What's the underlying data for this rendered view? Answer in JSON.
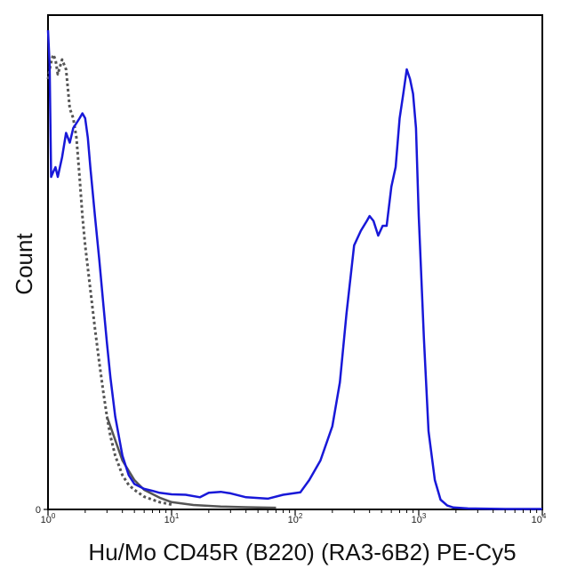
{
  "chart_data": {
    "type": "line",
    "title": "",
    "xlabel": "Hu/Mo CD45R (B220) (RA3-6B2) PE-Cy5",
    "ylabel": "Count",
    "x_scale": "log",
    "xlim": [
      1,
      10000
    ],
    "ylim": [
      0,
      100
    ],
    "grid": false,
    "legend": "none",
    "x_ticks": [
      {
        "value": 1,
        "base": "10",
        "exp": "0"
      },
      {
        "value": 10,
        "base": "10",
        "exp": "1"
      },
      {
        "value": 100,
        "base": "10",
        "exp": "2"
      },
      {
        "value": 1000,
        "base": "10",
        "exp": "3"
      },
      {
        "value": 10000,
        "base": "10",
        "exp": "4"
      }
    ],
    "y_ticks": [
      {
        "value": 0,
        "label": "0"
      }
    ],
    "series": [
      {
        "color": "#555555",
        "dash": "dotted",
        "x": [
          1.0,
          1.05,
          1.1,
          1.15,
          1.2,
          1.3,
          1.4,
          1.5,
          1.6,
          1.7,
          1.8,
          1.9,
          2.0,
          2.2,
          2.4,
          2.6,
          2.8,
          3.0,
          3.2,
          3.5,
          4.0,
          4.5,
          5.0,
          6.0,
          7.0,
          8.0,
          10.0
        ],
        "y": [
          88,
          91,
          93,
          92,
          89,
          92,
          90,
          82,
          80,
          76,
          68,
          60,
          54,
          45,
          37,
          30,
          24,
          19,
          15,
          11,
          7,
          5,
          4,
          2.6,
          2.0,
          1.5,
          1.0
        ]
      },
      {
        "color": "#555555",
        "dash": "solid",
        "x": [
          3.0,
          4.0,
          5.0,
          6.0,
          8.0,
          10.0,
          15.0,
          25.0,
          40.0,
          70.0
        ],
        "y": [
          19,
          10,
          6,
          4,
          2.4,
          1.5,
          0.9,
          0.6,
          0.45,
          0.35
        ]
      },
      {
        "color": "#1818d8",
        "dash": "solid",
        "x": [
          1.0,
          1.03,
          1.06,
          1.1,
          1.15,
          1.2,
          1.3,
          1.4,
          1.5,
          1.6,
          1.7,
          1.8,
          1.9,
          2.0,
          2.1,
          2.2,
          2.4,
          2.6,
          2.8,
          3.0,
          3.2,
          3.5,
          4.0,
          4.5,
          5.0,
          6.0,
          7.0,
          8.0,
          10.0,
          13.0,
          17.0,
          20.0,
          25.0,
          30.0,
          40.0,
          60.0,
          80.0,
          110.0,
          130.0,
          160.0,
          200.0,
          230.0,
          260.0,
          300.0,
          340.0,
          380.0,
          400.0,
          430.0,
          470.0,
          510.0,
          550.0,
          600.0,
          650.0,
          700.0,
          750.0,
          800.0,
          850.0,
          900.0,
          950.0,
          1000.0,
          1100.0,
          1200.0,
          1350.0,
          1500.0,
          1700.0,
          1900.0,
          2500.0,
          5000.0,
          10000.0
        ],
        "y": [
          98,
          91,
          68,
          69,
          70,
          68,
          72,
          77,
          75,
          78,
          79,
          80,
          81,
          80,
          76,
          70,
          60,
          51,
          42,
          34,
          27,
          19,
          11,
          7,
          5.2,
          4.2,
          3.8,
          3.4,
          3.1,
          3.0,
          2.5,
          3.4,
          3.6,
          3.3,
          2.5,
          2.2,
          3.0,
          3.5,
          6.0,
          10,
          17,
          26,
          40,
          54,
          57,
          59,
          60,
          59,
          56,
          58,
          58,
          66,
          70,
          80,
          85,
          90,
          88,
          85,
          78,
          60,
          35,
          16,
          6,
          2.0,
          0.8,
          0.4,
          0.2,
          0.1,
          0.1
        ]
      }
    ]
  }
}
